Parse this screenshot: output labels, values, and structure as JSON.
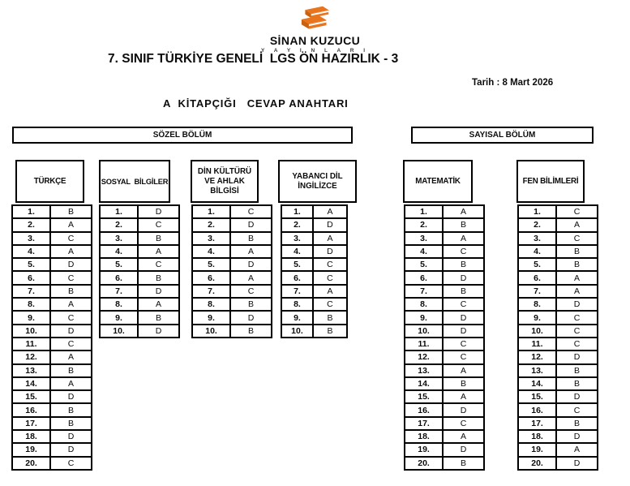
{
  "brand": {
    "name": "SİNAN KUZUCU",
    "subtitle": "Y A Y I N L A R I",
    "logo_icon": "stacked-books-icon",
    "logo_color": "#E8741C"
  },
  "header": {
    "title": "7. SINIF TÜRKİYE GENELİ  LGS ÖN HAZIRLIK - 3",
    "date": "Tarih : 8 Mart 2026",
    "booklet": "A  KİTAPÇIĞI   CEVAP ANAHTARI"
  },
  "sections": {
    "verbal": "SÖZEL BÖLÜM",
    "numeric": "SAYISAL BÖLÜM"
  },
  "tables": [
    {
      "subject": "TÜRKÇE",
      "answers": [
        "B",
        "A",
        "C",
        "A",
        "D",
        "C",
        "B",
        "A",
        "C",
        "D",
        "C",
        "A",
        "B",
        "A",
        "D",
        "B",
        "B",
        "D",
        "D",
        "C"
      ]
    },
    {
      "subject": "SOSYAL  BİLGİLER",
      "answers": [
        "D",
        "C",
        "B",
        "A",
        "C",
        "B",
        "D",
        "A",
        "B",
        "D"
      ]
    },
    {
      "subject": "DİN KÜLTÜRÜ VE AHLAK BİLGİSİ",
      "answers": [
        "C",
        "D",
        "B",
        "A",
        "D",
        "A",
        "C",
        "B",
        "D",
        "B"
      ]
    },
    {
      "subject": "YABANCI DİL İNGİLİZCE",
      "answers": [
        "A",
        "D",
        "A",
        "D",
        "C",
        "C",
        "A",
        "C",
        "B",
        "B"
      ]
    },
    {
      "subject": "MATEMATİK",
      "answers": [
        "A",
        "B",
        "A",
        "C",
        "B",
        "D",
        "B",
        "C",
        "D",
        "D",
        "C",
        "C",
        "A",
        "B",
        "A",
        "D",
        "C",
        "A",
        "D",
        "B"
      ]
    },
    {
      "subject": "FEN BİLİMLERİ",
      "answers": [
        "C",
        "A",
        "C",
        "B",
        "B",
        "A",
        "A",
        "D",
        "C",
        "C",
        "C",
        "D",
        "B",
        "B",
        "D",
        "C",
        "B",
        "D",
        "A",
        "D"
      ]
    }
  ]
}
